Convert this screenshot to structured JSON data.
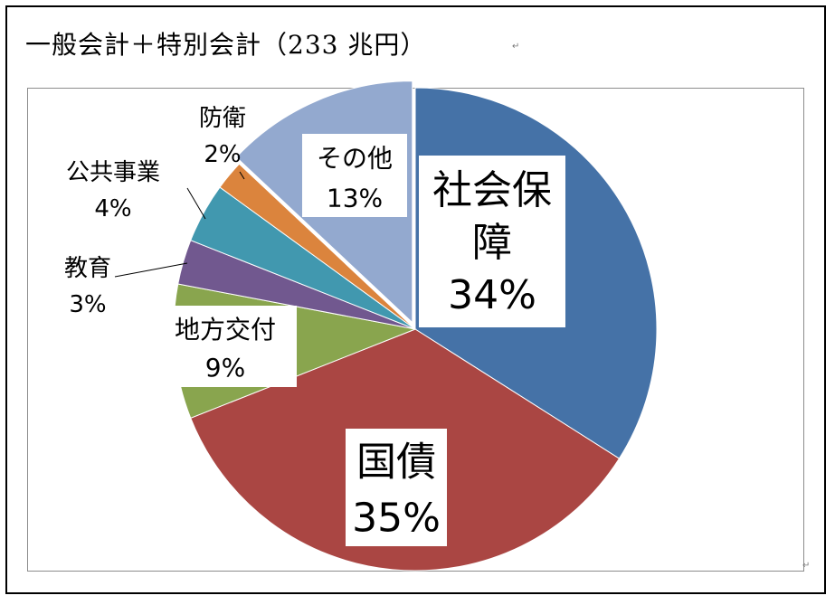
{
  "title": "一般会計＋特別会計（233 兆円）",
  "para_mark": "↵",
  "colors": {
    "social_security": "#4572A7",
    "debt": "#AA4643",
    "local": "#89A54E",
    "education": "#71588F",
    "public_works": "#4198AF",
    "defense": "#DB843D",
    "other": "#93A9CF"
  },
  "chart_data": {
    "type": "pie",
    "title": "一般会計＋特別会計（233 兆円）",
    "start": "12 o'clock",
    "direction": "clockwise",
    "slices": [
      {
        "name": "社会保障",
        "label_lines": [
          "社会保",
          "障"
        ],
        "value": 34,
        "pct_label": "34%",
        "color": "#4572A7"
      },
      {
        "name": "国債",
        "label_lines": [
          "国債"
        ],
        "value": 35,
        "pct_label": "35%",
        "color": "#AA4643"
      },
      {
        "name": "地方交付",
        "label_lines": [
          "地方交付"
        ],
        "value": 9,
        "pct_label": "9%",
        "color": "#89A54E"
      },
      {
        "name": "教育",
        "label_lines": [
          "教育"
        ],
        "value": 3,
        "pct_label": "3%",
        "color": "#71588F"
      },
      {
        "name": "公共事業",
        "label_lines": [
          "公共事業"
        ],
        "value": 4,
        "pct_label": "4%",
        "color": "#4198AF"
      },
      {
        "name": "防衛",
        "label_lines": [
          "防衛"
        ],
        "value": 2,
        "pct_label": "2%",
        "color": "#DB843D"
      },
      {
        "name": "その他",
        "label_lines": [
          "その他"
        ],
        "value": 13,
        "pct_label": "13%",
        "color": "#93A9CF"
      }
    ]
  }
}
